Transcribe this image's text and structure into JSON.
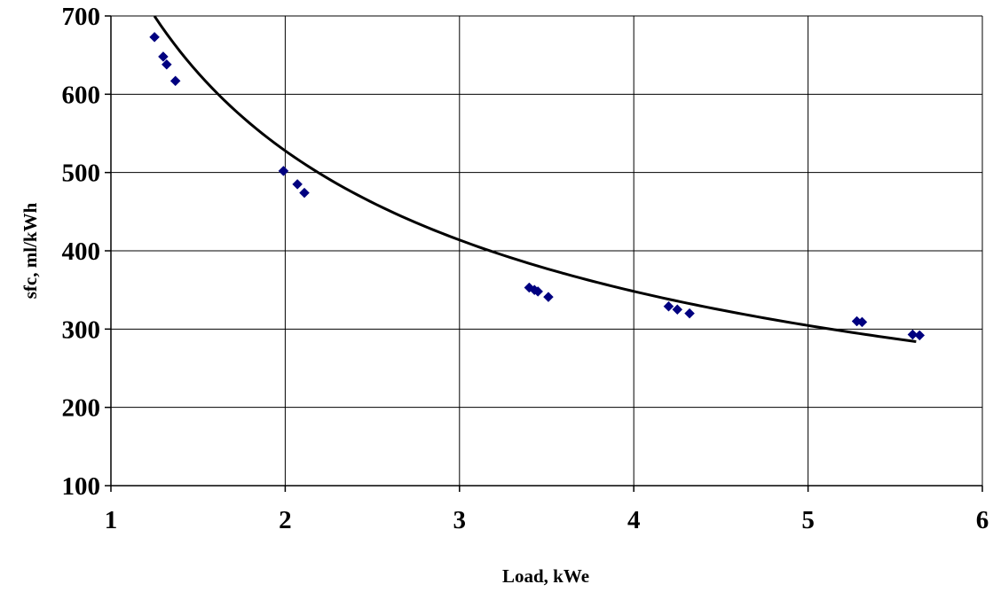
{
  "chart_data": {
    "type": "scatter",
    "xlabel": "Load, kWe",
    "ylabel": "sfc, ml/kWh",
    "xlim": [
      1,
      6
    ],
    "ylim": [
      100,
      700
    ],
    "x_ticks": [
      "1",
      "2",
      "3",
      "4",
      "5",
      "6"
    ],
    "y_ticks": [
      "100",
      "200",
      "300",
      "400",
      "500",
      "600",
      "700"
    ],
    "grid": true,
    "legend": "none",
    "series": [
      {
        "marker": "diamond",
        "color": "#000080",
        "points": [
          {
            "x": 1.25,
            "y": 673
          },
          {
            "x": 1.3,
            "y": 648
          },
          {
            "x": 1.32,
            "y": 638
          },
          {
            "x": 1.37,
            "y": 617
          },
          {
            "x": 1.99,
            "y": 502
          },
          {
            "x": 2.07,
            "y": 485
          },
          {
            "x": 2.11,
            "y": 474
          },
          {
            "x": 3.4,
            "y": 353
          },
          {
            "x": 3.43,
            "y": 350
          },
          {
            "x": 3.45,
            "y": 348
          },
          {
            "x": 3.51,
            "y": 341
          },
          {
            "x": 4.2,
            "y": 329
          },
          {
            "x": 4.25,
            "y": 325
          },
          {
            "x": 4.32,
            "y": 320
          },
          {
            "x": 5.28,
            "y": 310
          },
          {
            "x": 5.31,
            "y": 309
          },
          {
            "x": 5.6,
            "y": 293
          },
          {
            "x": 5.64,
            "y": 292
          }
        ]
      }
    ],
    "trendline": {
      "type": "power",
      "color": "#000000",
      "x_range": [
        1.25,
        5.62
      ],
      "coefficient": 800,
      "exponent": -0.6
    }
  }
}
